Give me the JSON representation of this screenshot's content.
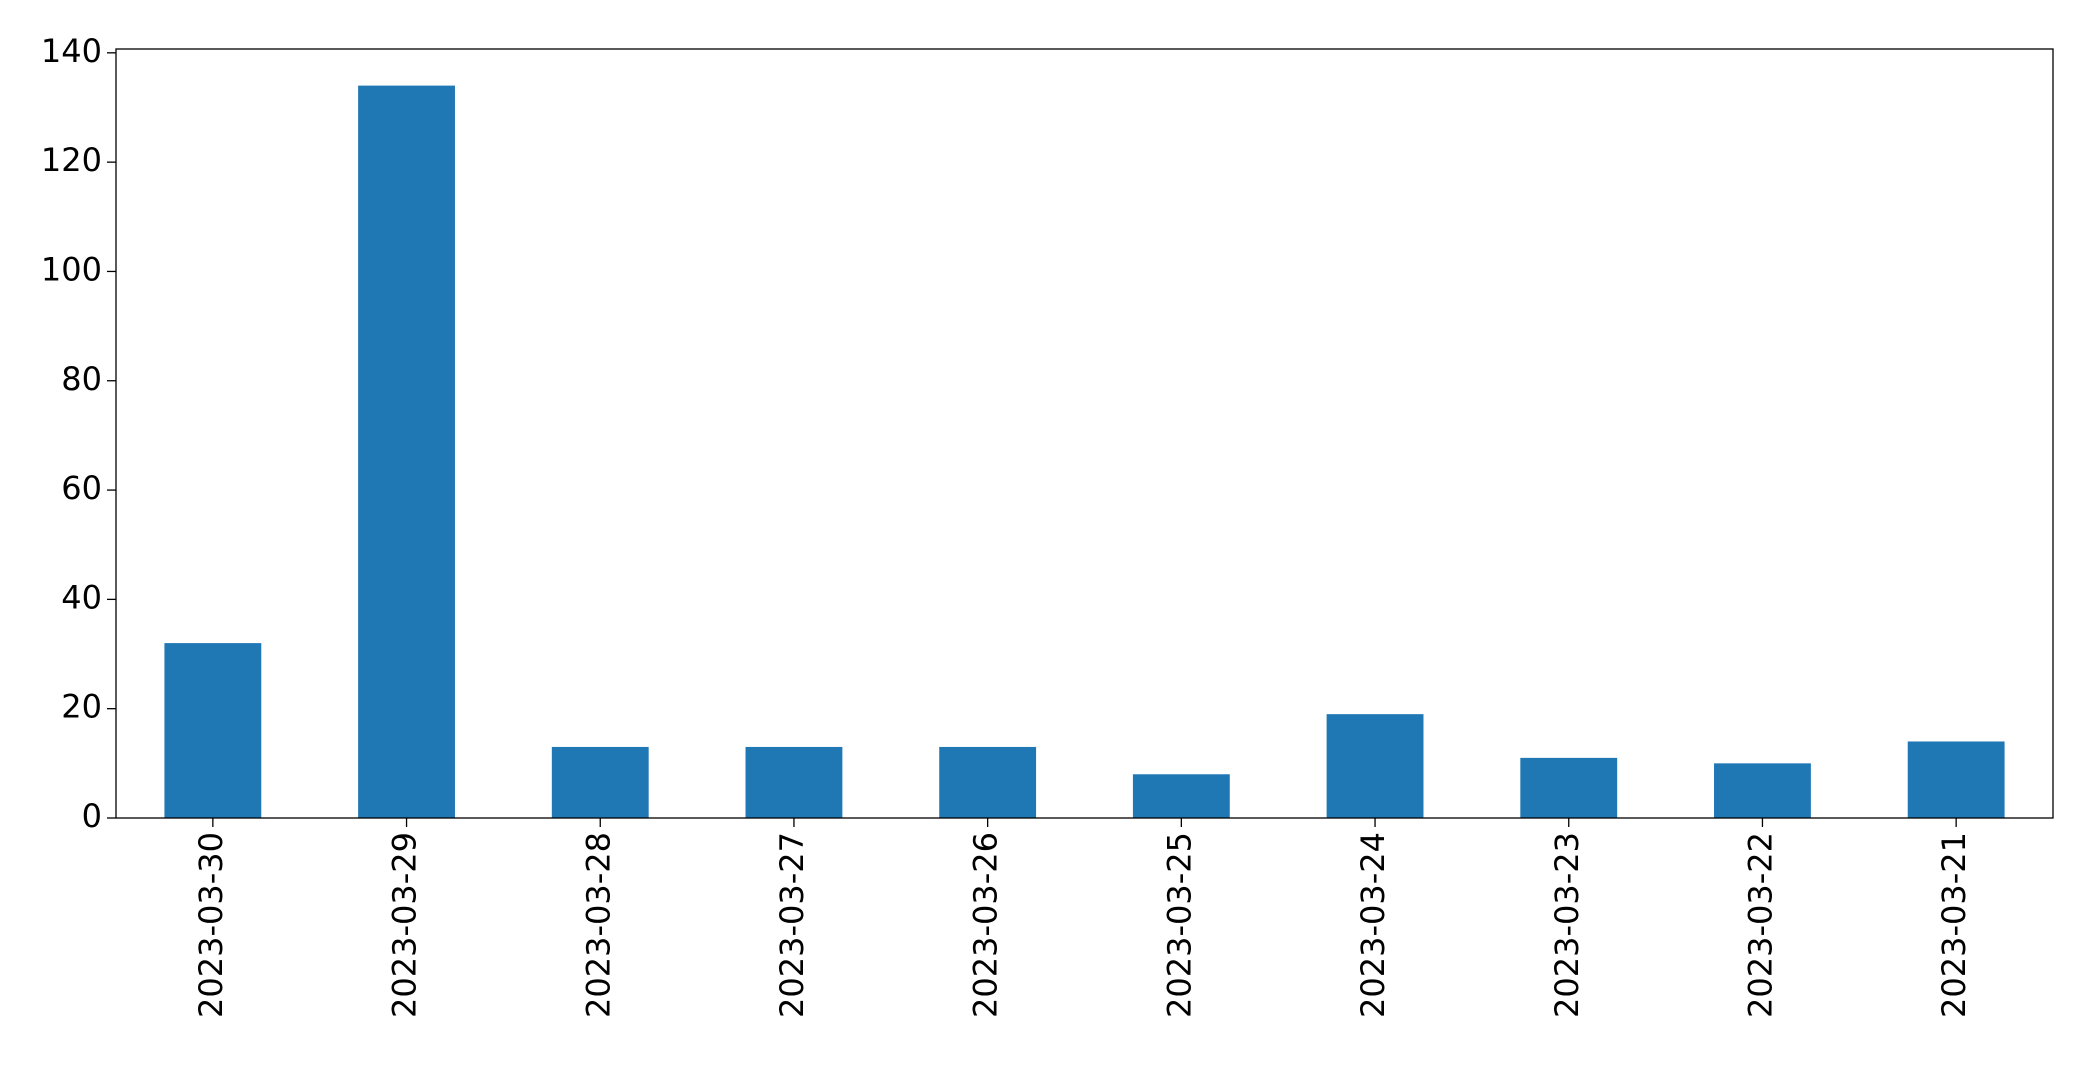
{
  "chart_data": {
    "type": "bar",
    "categories": [
      "2023-03-30",
      "2023-03-29",
      "2023-03-28",
      "2023-03-27",
      "2023-03-26",
      "2023-03-25",
      "2023-03-24",
      "2023-03-23",
      "2023-03-22",
      "2023-03-21"
    ],
    "values": [
      32,
      134,
      13,
      13,
      13,
      8,
      19,
      11,
      10,
      14
    ],
    "color": "#1f77b4",
    "ylim": [
      0,
      140.7
    ],
    "yticks": [
      0,
      20,
      40,
      60,
      80,
      100,
      120,
      140
    ],
    "grid": false
  }
}
